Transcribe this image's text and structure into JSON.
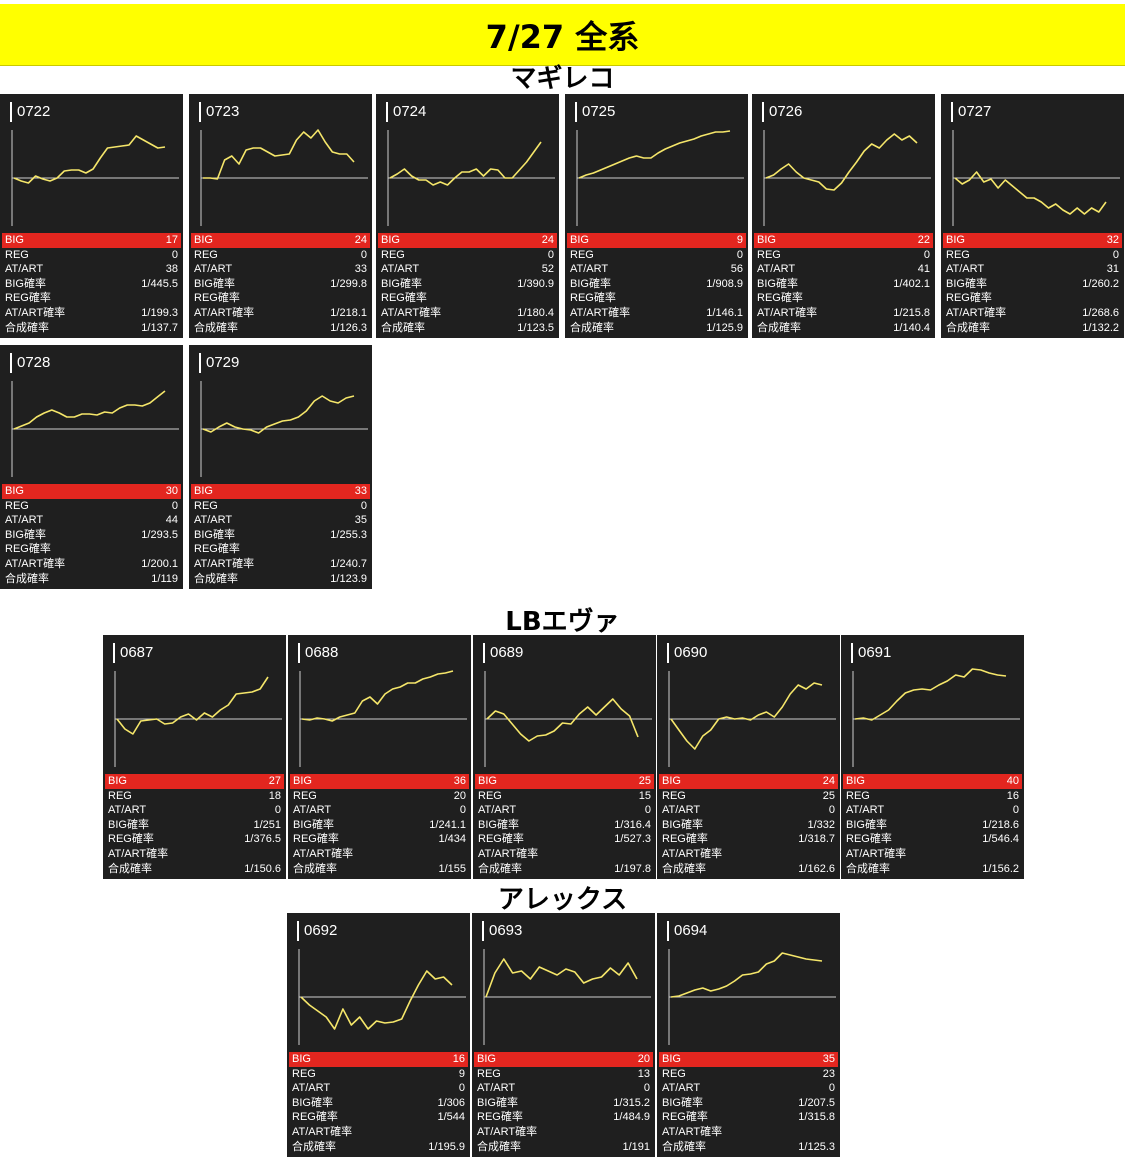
{
  "banner": {
    "title": "7/27 全系"
  },
  "colors": {
    "banner_bg": "#ffff00",
    "card_bg": "#1f1f1f",
    "highlight": "#e3261f",
    "line": "#f5e66a",
    "baseline": "#cfcfcf"
  },
  "stat_labels": [
    "BIG",
    "REG",
    "AT/ART",
    "BIG確率",
    "REG確率",
    "AT/ART確率",
    "合成確率"
  ],
  "groups": [
    {
      "title": "マギレコ",
      "cards": [
        {
          "machine": "0722",
          "big": "17",
          "reg": "0",
          "atart": "38",
          "big_rate": "1/445.5",
          "reg_rate": "",
          "atart_rate": "1/199.3",
          "combined_rate": "1/137.7",
          "trend": [
            0,
            -3,
            -5,
            2,
            -1,
            -3,
            0,
            7,
            8,
            8,
            5,
            9,
            20,
            30,
            31,
            32,
            33,
            42,
            38,
            34,
            30,
            31
          ]
        },
        {
          "machine": "0723",
          "big": "24",
          "reg": "0",
          "atart": "33",
          "big_rate": "1/299.8",
          "reg_rate": "",
          "atart_rate": "1/218.1",
          "combined_rate": "1/126.3",
          "trend": [
            0,
            0,
            -1,
            18,
            22,
            14,
            28,
            30,
            30,
            26,
            22,
            23,
            24,
            38,
            46,
            40,
            48,
            36,
            26,
            24,
            24,
            16
          ]
        },
        {
          "machine": "0724",
          "big": "24",
          "reg": "0",
          "atart": "52",
          "big_rate": "1/390.9",
          "reg_rate": "",
          "atart_rate": "1/180.4",
          "combined_rate": "1/123.5",
          "trend": [
            0,
            4,
            9,
            2,
            -2,
            -2,
            -7,
            -4,
            -7,
            0,
            6,
            6,
            9,
            2,
            9,
            8,
            0,
            0,
            8,
            16,
            26,
            36
          ]
        },
        {
          "machine": "0725",
          "big": "9",
          "reg": "0",
          "atart": "56",
          "big_rate": "1/908.9",
          "reg_rate": "",
          "atart_rate": "1/146.1",
          "combined_rate": "1/125.9",
          "trend": [
            0,
            3,
            5,
            8,
            11,
            14,
            17,
            20,
            22,
            20,
            20,
            25,
            29,
            32,
            35,
            37,
            39,
            42,
            44,
            46,
            46,
            47
          ]
        },
        {
          "machine": "0726",
          "big": "22",
          "reg": "0",
          "atart": "41",
          "big_rate": "1/402.1",
          "reg_rate": "",
          "atart_rate": "1/215.8",
          "combined_rate": "1/140.4",
          "trend": [
            0,
            3,
            9,
            14,
            6,
            0,
            -2,
            -4,
            -11,
            -12,
            -5,
            6,
            16,
            27,
            34,
            30,
            38,
            44,
            38,
            42,
            35
          ]
        },
        {
          "machine": "0727",
          "big": "32",
          "reg": "0",
          "atart": "31",
          "big_rate": "1/260.2",
          "reg_rate": "",
          "atart_rate": "1/268.6",
          "combined_rate": "1/132.2",
          "trend": [
            0,
            -6,
            -2,
            6,
            -4,
            -1,
            -10,
            -2,
            -8,
            -14,
            -20,
            -20,
            -24,
            -30,
            -26,
            -32,
            -36,
            -30,
            -36,
            -30,
            -34,
            -24
          ]
        }
      ]
    },
    {
      "title": "",
      "cards": [
        {
          "machine": "0728",
          "big": "30",
          "reg": "0",
          "atart": "44",
          "big_rate": "1/293.5",
          "reg_rate": "",
          "atart_rate": "1/200.1",
          "combined_rate": "1/119",
          "trend": [
            0,
            3,
            6,
            12,
            16,
            19,
            16,
            12,
            12,
            15,
            15,
            14,
            17,
            16,
            21,
            24,
            24,
            23,
            26,
            32,
            38
          ]
        },
        {
          "machine": "0729",
          "big": "33",
          "reg": "0",
          "atart": "35",
          "big_rate": "1/255.3",
          "reg_rate": "",
          "atart_rate": "1/240.7",
          "combined_rate": "1/123.9",
          "trend": [
            0,
            -3,
            2,
            6,
            2,
            0,
            -1,
            -4,
            2,
            5,
            8,
            9,
            12,
            18,
            28,
            33,
            28,
            26,
            31,
            33
          ]
        }
      ]
    },
    {
      "title": "LBエヴァ",
      "cards": [
        {
          "machine": "0687",
          "big": "27",
          "reg": "18",
          "atart": "0",
          "big_rate": "1/251",
          "reg_rate": "1/376.5",
          "atart_rate": "",
          "combined_rate": "1/150.6",
          "trend": [
            0,
            -10,
            -15,
            -2,
            -1,
            0,
            -5,
            -4,
            2,
            5,
            -1,
            6,
            2,
            9,
            14,
            25,
            26,
            27,
            30,
            42
          ]
        },
        {
          "machine": "0688",
          "big": "36",
          "reg": "20",
          "atart": "0",
          "big_rate": "1/241.1",
          "reg_rate": "1/434",
          "atart_rate": "",
          "combined_rate": "1/155",
          "trend": [
            0,
            -1,
            1,
            0,
            -2,
            2,
            4,
            6,
            18,
            22,
            15,
            25,
            30,
            32,
            36,
            36,
            40,
            42,
            45,
            46,
            48
          ]
        },
        {
          "machine": "0689",
          "big": "25",
          "reg": "15",
          "atart": "0",
          "big_rate": "1/316.4",
          "reg_rate": "1/527.3",
          "atart_rate": "",
          "combined_rate": "1/197.8",
          "trend": [
            0,
            8,
            5,
            -5,
            -15,
            -22,
            -17,
            -16,
            -12,
            -4,
            -5,
            5,
            12,
            4,
            12,
            20,
            10,
            3,
            -18
          ]
        },
        {
          "machine": "0690",
          "big": "24",
          "reg": "25",
          "atart": "0",
          "big_rate": "1/332",
          "reg_rate": "1/318.7",
          "atart_rate": "",
          "combined_rate": "1/162.6",
          "trend": [
            0,
            -11,
            -22,
            -30,
            -17,
            -11,
            0,
            2,
            0,
            1,
            -1,
            4,
            7,
            2,
            12,
            25,
            34,
            30,
            36,
            34
          ]
        },
        {
          "machine": "0691",
          "big": "40",
          "reg": "16",
          "atart": "0",
          "big_rate": "1/218.6",
          "reg_rate": "1/546.4",
          "atart_rate": "",
          "combined_rate": "1/156.2",
          "trend": [
            0,
            1,
            -1,
            4,
            9,
            18,
            26,
            29,
            30,
            29,
            34,
            38,
            44,
            42,
            50,
            49,
            46,
            44,
            43
          ]
        }
      ]
    },
    {
      "title": "アレックス",
      "cards": [
        {
          "machine": "0692",
          "big": "16",
          "reg": "9",
          "atart": "0",
          "big_rate": "1/306",
          "reg_rate": "1/544",
          "atart_rate": "",
          "combined_rate": "1/195.9",
          "trend": [
            0,
            -8,
            -14,
            -20,
            -32,
            -12,
            -28,
            -20,
            -32,
            -24,
            -26,
            -25,
            -22,
            -4,
            12,
            26,
            18,
            20,
            12
          ]
        },
        {
          "machine": "0693",
          "big": "20",
          "reg": "13",
          "atart": "0",
          "big_rate": "1/315.2",
          "reg_rate": "1/484.9",
          "atart_rate": "",
          "combined_rate": "1/191",
          "trend": [
            0,
            24,
            38,
            24,
            26,
            18,
            30,
            26,
            22,
            28,
            25,
            14,
            18,
            20,
            29,
            22,
            34,
            18
          ]
        },
        {
          "machine": "0694",
          "big": "35",
          "reg": "23",
          "atart": "0",
          "big_rate": "1/207.5",
          "reg_rate": "1/315.8",
          "atart_rate": "",
          "combined_rate": "1/125.3",
          "trend": [
            0,
            1,
            4,
            7,
            9,
            6,
            8,
            11,
            16,
            22,
            23,
            25,
            33,
            36,
            44,
            42,
            40,
            38,
            37,
            36
          ]
        }
      ]
    }
  ]
}
